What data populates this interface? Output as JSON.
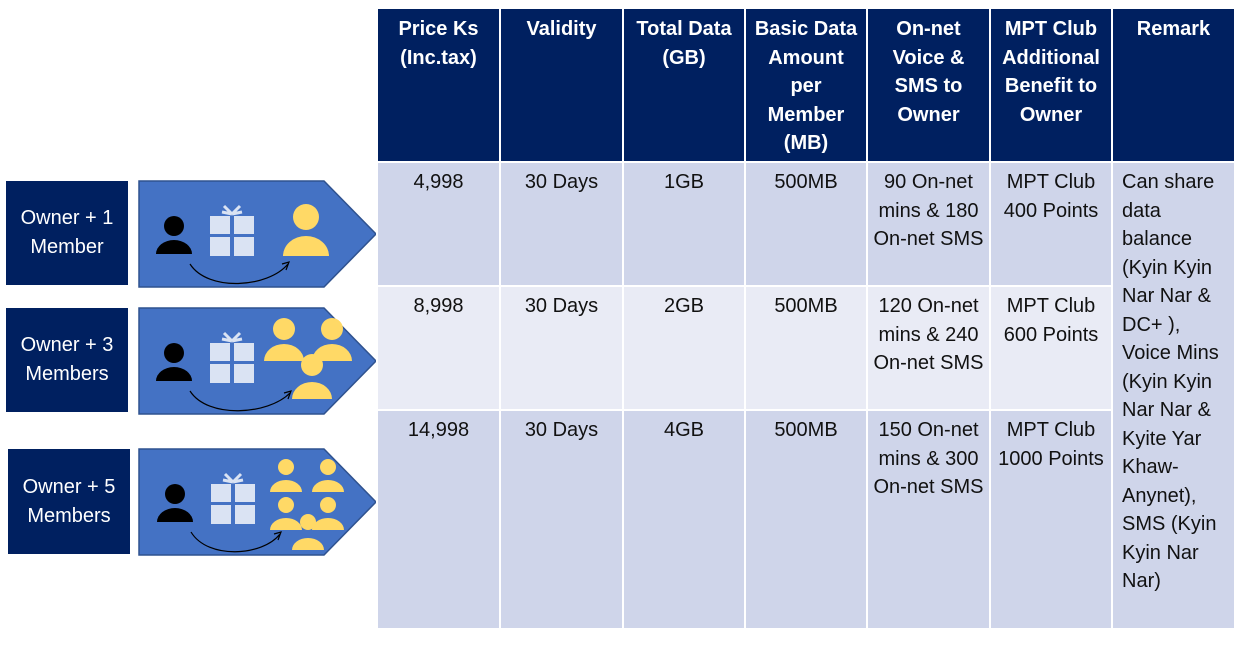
{
  "columns": [
    "Price Ks (Inc.tax)",
    "Validity",
    "Total Data (GB)",
    "Basic Data Amount per Member (MB)",
    "On-net Voice & SMS to Owner",
    "MPT Club Additional Benefit to Owner",
    "Remark"
  ],
  "plans": [
    {
      "label": "Owner + 1\nMember",
      "members": 1,
      "price": "4,998",
      "validity": "30 Days",
      "total_data": "1GB",
      "basic_data": "500MB",
      "voice_sms": "90 On-net mins & 180 On-net SMS",
      "club_benefit": "MPT Club 400 Points"
    },
    {
      "label": "Owner + 3\nMembers",
      "members": 3,
      "price": "8,998",
      "validity": "30 Days",
      "total_data": "2GB",
      "basic_data": "500MB",
      "voice_sms": "120 On-net mins & 240 On-net SMS",
      "club_benefit": "MPT Club 600 Points"
    },
    {
      "label": "Owner + 5\nMembers",
      "members": 5,
      "price": "14,998",
      "validity": "30 Days",
      "total_data": "4GB",
      "basic_data": "500MB",
      "voice_sms": "150 On-net mins & 300 On-net SMS",
      "club_benefit": "MPT Club 1000 Points"
    }
  ],
  "remark": "Can share data balance (Kyin Kyin Nar Nar & DC+ ), Voice Mins (Kyin Kyin Nar Nar & Kyite Yar Khaw-Anynet), SMS (Kyin Kyin Nar Nar)",
  "colors": {
    "header_bg": "#002060",
    "row_dark": "#cfd5ea",
    "row_light": "#e9ebf5",
    "arrow_fill": "#4472c4",
    "member_icon": "#ffd966",
    "gift_icon": "#dae3f3",
    "owner_icon": "#000000"
  },
  "icons": {
    "owner": "person-icon",
    "gift": "gift-icon",
    "member": "person-icon",
    "share": "curved-arrow-icon"
  }
}
